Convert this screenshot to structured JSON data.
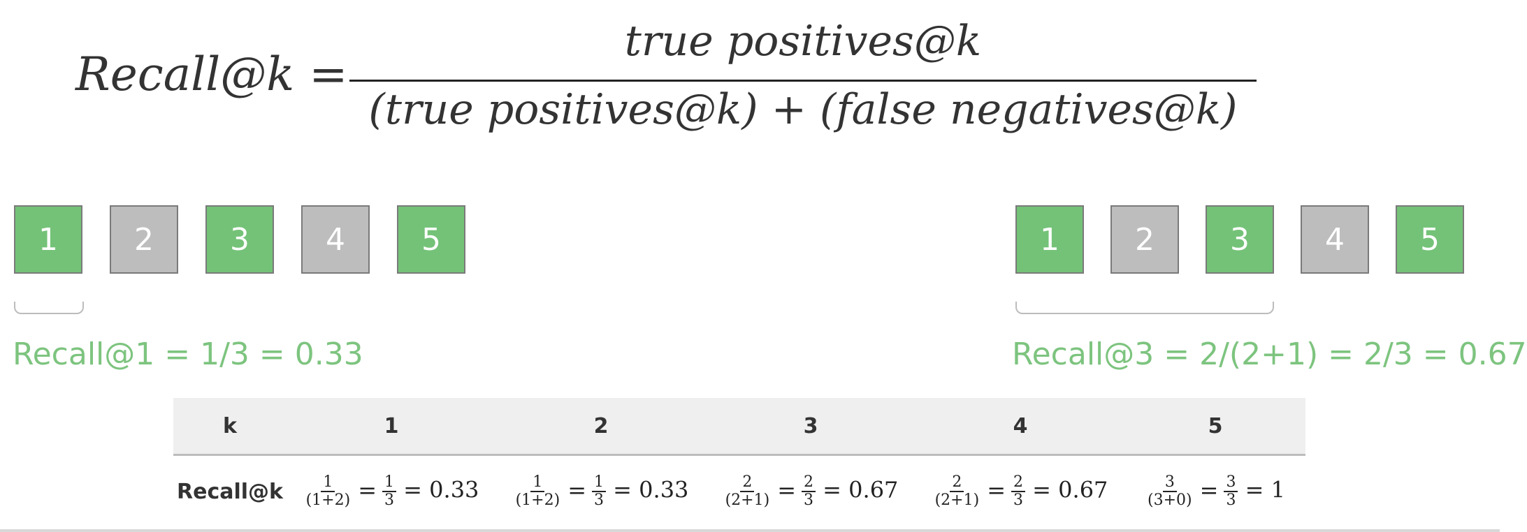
{
  "formula": {
    "lhs": "Recall@k =",
    "numerator": "true positives@k",
    "denominator": "(true positives@k) + (false negatives@k)"
  },
  "left_example": {
    "items": [
      {
        "label": "1",
        "relevant": true
      },
      {
        "label": "2",
        "relevant": false
      },
      {
        "label": "3",
        "relevant": true
      },
      {
        "label": "4",
        "relevant": false
      },
      {
        "label": "5",
        "relevant": true
      }
    ],
    "result": "Recall@1 = 1/3 = 0.33"
  },
  "right_example": {
    "items": [
      {
        "label": "1",
        "relevant": true
      },
      {
        "label": "2",
        "relevant": false
      },
      {
        "label": "3",
        "relevant": true
      },
      {
        "label": "4",
        "relevant": false
      },
      {
        "label": "5",
        "relevant": true
      }
    ],
    "result": "Recall@3 = 2/(2+1) = 2/3 = 0.67"
  },
  "table": {
    "header": [
      "k",
      "1",
      "2",
      "3",
      "4",
      "5"
    ],
    "row_label": "Recall@k",
    "cells": [
      {
        "num": "1",
        "den": "(1+2)",
        "simp_num": "1",
        "simp_den": "3",
        "value": "= 0.33"
      },
      {
        "num": "1",
        "den": "(1+2)",
        "simp_num": "1",
        "simp_den": "3",
        "value": "= 0.33"
      },
      {
        "num": "2",
        "den": "(2+1)",
        "simp_num": "2",
        "simp_den": "3",
        "value": "= 0.67"
      },
      {
        "num": "2",
        "den": "(2+1)",
        "simp_num": "2",
        "simp_den": "3",
        "value": "= 0.67"
      },
      {
        "num": "3",
        "den": "(3+0)",
        "simp_num": "3",
        "simp_den": "3",
        "value": "= 1"
      }
    ]
  },
  "colors": {
    "relevant": "#74c278",
    "not_relevant": "#bdbdbd",
    "label_green": "#7dc47f",
    "header_bg": "#efefef"
  }
}
